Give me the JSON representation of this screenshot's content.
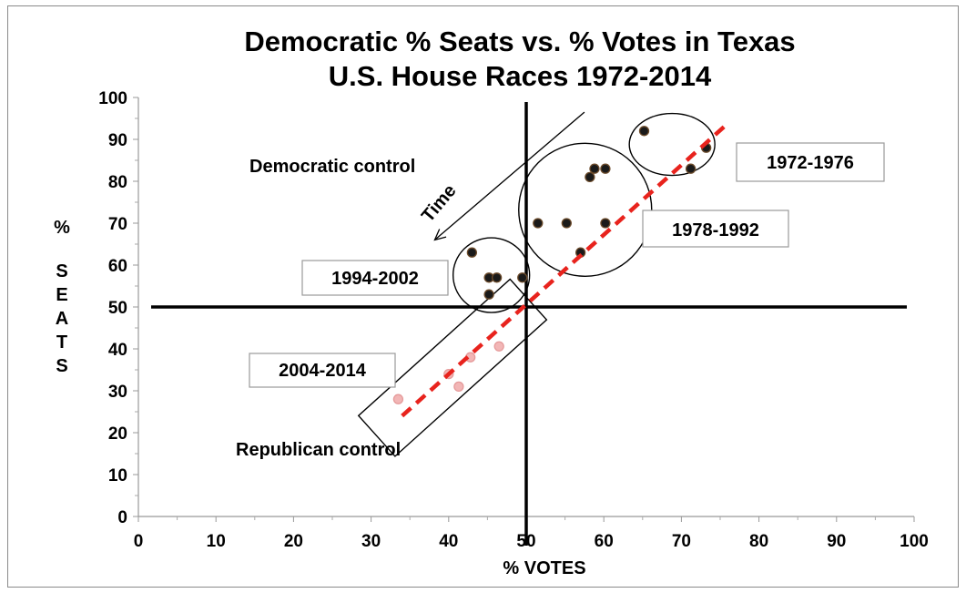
{
  "chart_data": {
    "type": "scatter",
    "title_lines": [
      "Democratic % Seats vs. % Votes in Texas",
      "U.S. House Races 1972-2014"
    ],
    "xlabel": "% VOTES",
    "ylabel_letters": [
      "%",
      "S",
      "E",
      "A",
      "T",
      "S"
    ],
    "xlim": [
      0,
      100
    ],
    "ylim": [
      0,
      100
    ],
    "xticks": [
      "0",
      "10",
      "20",
      "30",
      "40",
      "50",
      "60",
      "70",
      "80",
      "90",
      "100"
    ],
    "yticks": [
      "0",
      "10",
      "20",
      "30",
      "40",
      "50",
      "60",
      "70",
      "80",
      "90",
      "100"
    ],
    "grid": false,
    "reference_lines": {
      "x": 50,
      "y": 50
    },
    "series": [
      {
        "group": "1972-1976",
        "color": "#1a1a1a",
        "points": [
          [
            65.2,
            92
          ],
          [
            73.2,
            88
          ],
          [
            71.2,
            83
          ]
        ]
      },
      {
        "group": "1978-1992",
        "color": "#1a1a1a",
        "points": [
          [
            58.8,
            83
          ],
          [
            60.2,
            83
          ],
          [
            58.2,
            81
          ],
          [
            51.5,
            70
          ],
          [
            55.2,
            70
          ],
          [
            60.2,
            70
          ],
          [
            57.0,
            63
          ]
        ]
      },
      {
        "group": "1994-2002",
        "color": "#1a1a1a",
        "points": [
          [
            43.0,
            63
          ],
          [
            45.2,
            57
          ],
          [
            46.2,
            57
          ],
          [
            49.5,
            57
          ],
          [
            45.2,
            53
          ]
        ]
      },
      {
        "group": "2004-2014",
        "color": "#f2b6b6",
        "points": [
          [
            46.5,
            40.6
          ],
          [
            42.8,
            38
          ],
          [
            40.0,
            34
          ],
          [
            41.3,
            31
          ],
          [
            33.5,
            28
          ]
        ]
      }
    ],
    "trendline": {
      "color": "#e8231d",
      "x": [
        34,
        75.5
      ],
      "y": [
        24,
        93
      ]
    },
    "time_arrow": {
      "label": "Time",
      "from": [
        57.5,
        96.5
      ],
      "to": [
        38.2,
        66
      ]
    },
    "annotations": {
      "region_top": "Democratic control",
      "region_bottom": "Republican control",
      "boxes": [
        "1972-1976",
        "1978-1992",
        "1994-2002",
        "2004-2014"
      ]
    }
  }
}
